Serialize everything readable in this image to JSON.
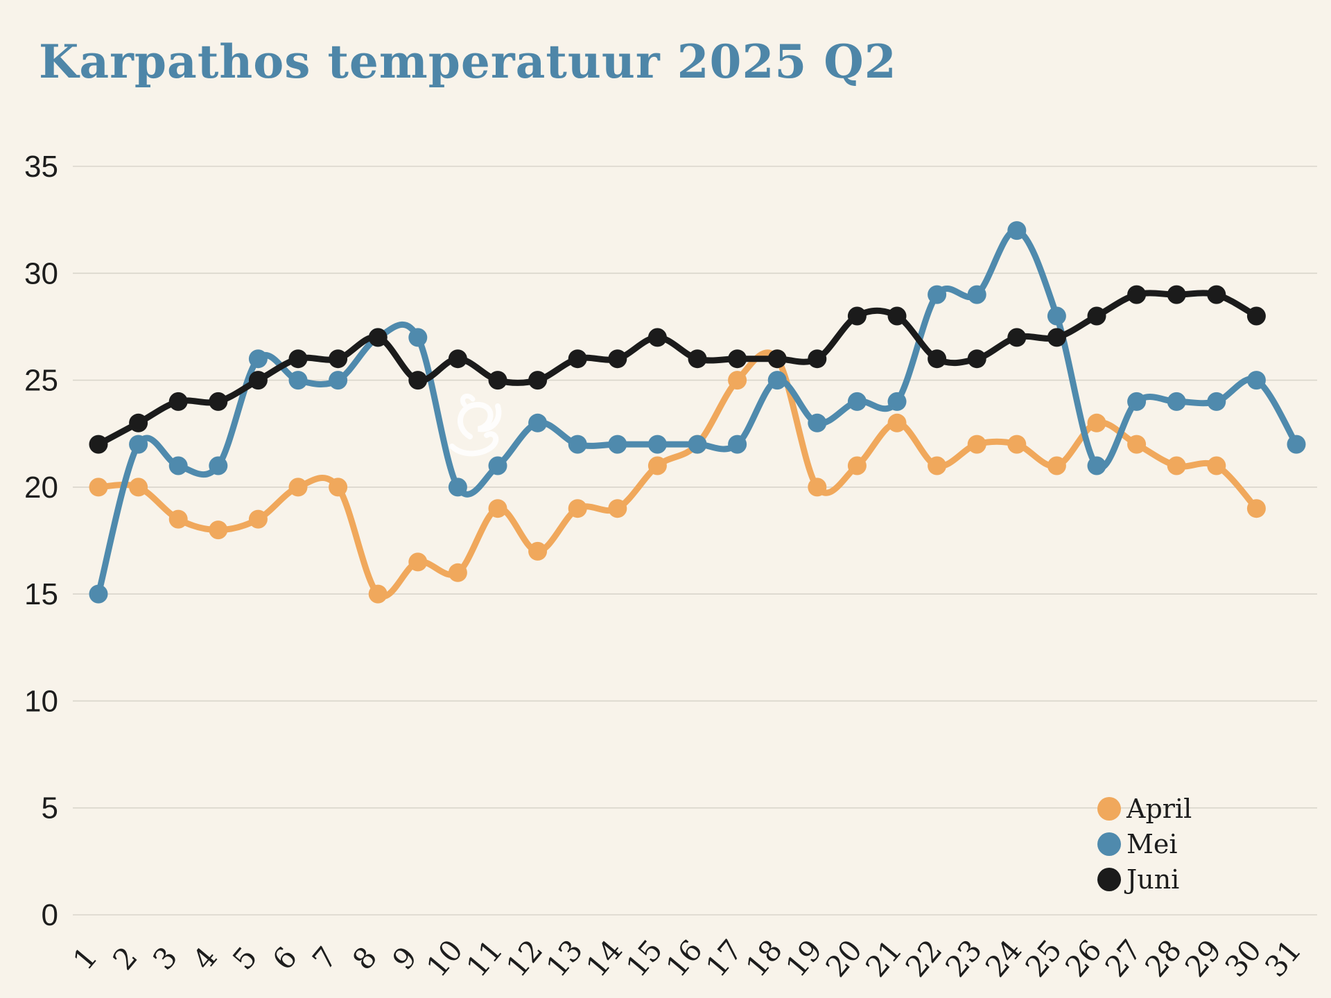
{
  "title": "Karpathos temperatuur 2025 Q2",
  "colors": {
    "background": "#F8F3EA",
    "gridline": "#D9D5CB",
    "title": "#4E86A8",
    "axis_text": "#1D1D1D",
    "april": "#F0A85C",
    "mei": "#4F8AAD",
    "juni": "#1B1B1B",
    "watermark": "#FFFFFF"
  },
  "legend": {
    "position": "bottom-right",
    "items": [
      {
        "label": "April",
        "color": "#F0A85C"
      },
      {
        "label": "Mei",
        "color": "#4F8AAD"
      },
      {
        "label": "Juni",
        "color": "#1B1B1B"
      }
    ]
  },
  "y_axis": {
    "min": 0,
    "max": 35,
    "ticks": [
      0,
      5,
      10,
      15,
      20,
      25,
      30,
      35
    ]
  },
  "x_axis": {
    "ticks": [
      1,
      2,
      3,
      4,
      5,
      6,
      7,
      8,
      9,
      10,
      11,
      12,
      13,
      14,
      15,
      16,
      17,
      18,
      19,
      20,
      21,
      22,
      23,
      24,
      25,
      26,
      27,
      28,
      29,
      30,
      31
    ]
  },
  "chart_data": {
    "type": "line",
    "title": "Karpathos temperatuur 2025 Q2",
    "xlabel": "",
    "ylabel": "",
    "ylim": [
      0,
      35
    ],
    "grid": true,
    "legend_position": "bottom-right",
    "x": [
      1,
      2,
      3,
      4,
      5,
      6,
      7,
      8,
      9,
      10,
      11,
      12,
      13,
      14,
      15,
      16,
      17,
      18,
      19,
      20,
      21,
      22,
      23,
      24,
      25,
      26,
      27,
      28,
      29,
      30,
      31
    ],
    "series": [
      {
        "name": "April",
        "color": "#F0A85C",
        "values": [
          20,
          20,
          18.5,
          18,
          18.5,
          20,
          20,
          15,
          16.5,
          16,
          19,
          17,
          19,
          19,
          21,
          22,
          25,
          26,
          20,
          21,
          23,
          21,
          22,
          22,
          21,
          23,
          22,
          21,
          21,
          19
        ]
      },
      {
        "name": "Mei",
        "color": "#4F8AAD",
        "values": [
          15,
          22,
          21,
          21,
          26,
          25,
          25,
          27,
          27,
          20,
          21,
          23,
          22,
          22,
          22,
          22,
          22,
          25,
          23,
          24,
          24,
          29,
          29,
          32,
          28,
          21,
          24,
          24,
          24,
          25,
          22
        ]
      },
      {
        "name": "Juni",
        "color": "#1B1B1B",
        "values": [
          22,
          23,
          24,
          24,
          25,
          26,
          26,
          27,
          25,
          26,
          25,
          25,
          26,
          26,
          27,
          26,
          26,
          26,
          26,
          28,
          28,
          26,
          26,
          27,
          27,
          28,
          29,
          29,
          29,
          28
        ]
      }
    ]
  }
}
